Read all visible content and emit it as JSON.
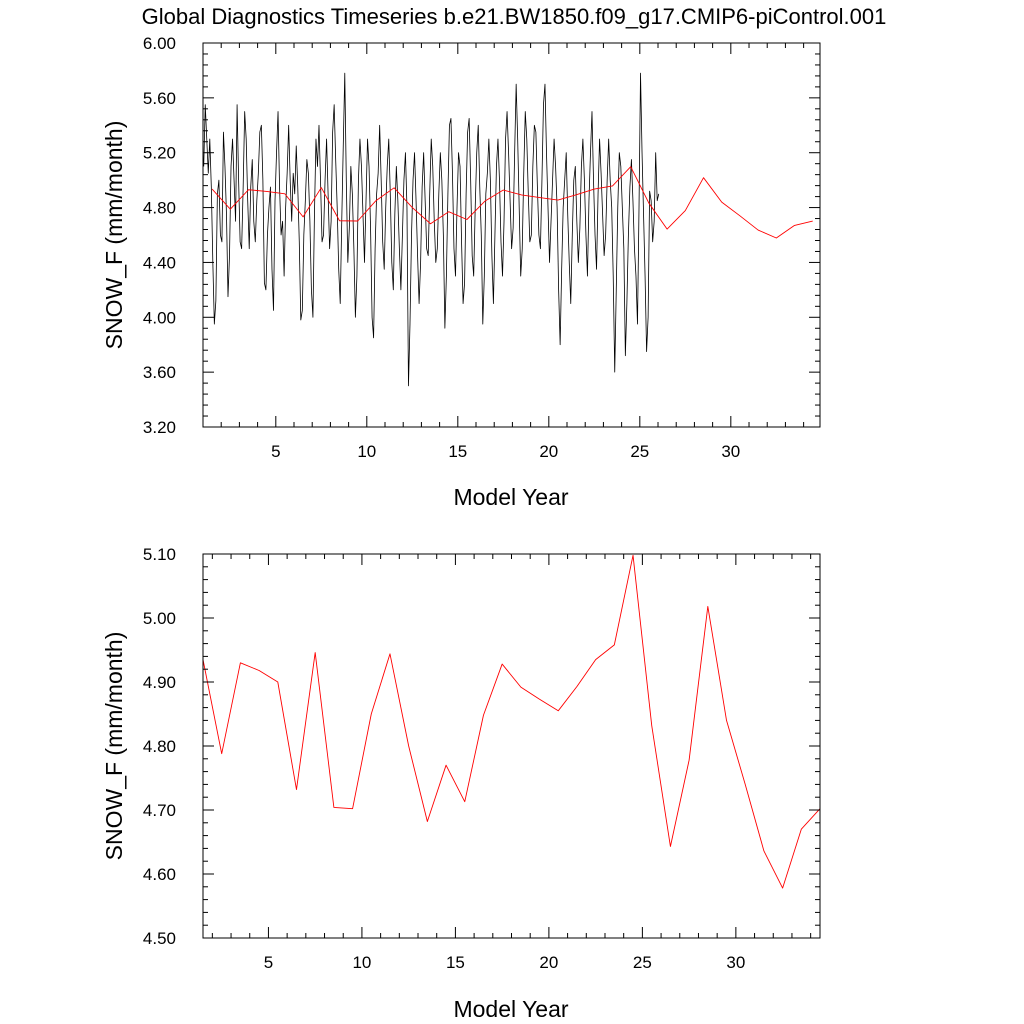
{
  "figure": {
    "title": "Global Diagnostics Timeseries b.e21.BW1850.f09_g17.CMIP6-piControl.001"
  },
  "colors": {
    "monthly_series": "#000000",
    "annual_series": "#ff0000",
    "axes": "#000000"
  },
  "chart_data": [
    {
      "type": "line",
      "xlabel": "Model Year",
      "ylabel": "SNOW_F (mm/month)",
      "xlim": [
        1.0,
        34.9
      ],
      "ylim": [
        3.2,
        6.0
      ],
      "x_ticks": [
        5,
        10,
        15,
        20,
        25,
        30
      ],
      "x_tick_labels": [
        "5",
        "10",
        "15",
        "20",
        "25",
        "30"
      ],
      "y_ticks": [
        3.2,
        3.6,
        4.0,
        4.4,
        4.8,
        5.2,
        5.6,
        6.0
      ],
      "y_tick_labels": [
        "3.20",
        "3.60",
        "4.00",
        "4.40",
        "4.80",
        "5.20",
        "5.60",
        "6.00"
      ],
      "series": [
        {
          "color": "#000000",
          "x_start": 1.04,
          "x_step": 0.08333,
          "values": [
            5.1,
            5.55,
            5.3,
            5.05,
            5.3,
            4.95,
            4.4,
            3.95,
            4.12,
            4.9,
            5.0,
            4.6,
            4.55,
            5.35,
            5.1,
            4.75,
            4.15,
            4.45,
            5.1,
            5.3,
            5.0,
            4.7,
            5.55,
            5.0,
            4.55,
            4.5,
            4.95,
            5.5,
            5.3,
            4.85,
            4.5,
            4.95,
            5.15,
            4.7,
            4.55,
            4.85,
            5.05,
            5.35,
            5.4,
            5.0,
            4.25,
            4.2,
            4.6,
            4.8,
            4.95,
            4.35,
            4.05,
            4.85,
            5.2,
            5.5,
            4.95,
            4.6,
            4.7,
            4.3,
            4.8,
            5.05,
            5.4,
            5.0,
            4.7,
            5.05,
            4.9,
            5.25,
            4.95,
            4.55,
            3.98,
            4.05,
            4.6,
            4.85,
            5.15,
            5.05,
            4.7,
            4.2,
            4.0,
            4.75,
            5.3,
            5.1,
            5.4,
            5.0,
            4.55,
            4.6,
            5.0,
            5.3,
            4.9,
            4.5,
            4.7,
            5.35,
            5.55,
            5.15,
            4.8,
            4.35,
            4.1,
            4.7,
            5.25,
            5.78,
            5.0,
            4.4,
            4.65,
            5.1,
            4.9,
            4.5,
            4.0,
            4.3,
            5.0,
            5.3,
            5.1,
            4.75,
            4.4,
            4.85,
            5.3,
            5.1,
            4.65,
            4.0,
            3.85,
            4.5,
            4.9,
            5.05,
            5.4,
            5.0,
            4.55,
            4.35,
            4.8,
            5.1,
            5.3,
            4.9,
            4.4,
            4.2,
            4.75,
            5.1,
            4.85,
            4.5,
            4.2,
            4.6,
            5.0,
            5.2,
            4.8,
            3.5,
            3.95,
            4.6,
            5.0,
            5.2,
            4.85,
            4.45,
            4.1,
            4.4,
            4.95,
            5.2,
            4.85,
            4.5,
            4.45,
            4.9,
            5.3,
            5.1,
            4.7,
            4.4,
            4.5,
            4.9,
            5.2,
            5.0,
            4.6,
            3.92,
            4.3,
            4.9,
            5.4,
            5.45,
            5.05,
            4.5,
            4.3,
            4.8,
            5.2,
            5.1,
            4.55,
            4.1,
            4.25,
            4.9,
            5.35,
            5.45,
            5.0,
            4.45,
            4.3,
            4.8,
            5.2,
            5.4,
            4.95,
            4.6,
            3.95,
            4.3,
            4.9,
            5.05,
            5.3,
            5.0,
            4.45,
            4.1,
            4.6,
            5.1,
            5.3,
            5.0,
            4.55,
            4.3,
            4.7,
            5.3,
            5.5,
            5.2,
            4.85,
            4.5,
            4.65,
            5.2,
            5.7,
            5.3,
            4.8,
            4.3,
            4.5,
            5.05,
            5.5,
            5.3,
            4.9,
            4.55,
            4.6,
            5.1,
            5.4,
            5.35,
            4.95,
            4.6,
            4.5,
            5.0,
            5.55,
            5.7,
            5.2,
            4.8,
            4.4,
            4.7,
            5.0,
            5.3,
            5.1,
            4.8,
            4.2,
            3.8,
            4.35,
            4.8,
            5.0,
            5.2,
            4.75,
            4.4,
            4.1,
            4.6,
            5.0,
            5.1,
            4.7,
            4.4,
            4.65,
            5.1,
            5.3,
            5.0,
            4.6,
            4.3,
            4.85,
            5.2,
            5.5,
            5.0,
            4.6,
            4.35,
            4.9,
            5.3,
            5.05,
            4.75,
            4.45,
            4.6,
            5.0,
            5.3,
            5.0,
            4.8,
            4.3,
            3.6,
            4.2,
            4.8,
            5.2,
            5.1,
            4.8,
            4.5,
            3.72,
            4.1,
            4.6,
            4.95,
            5.15,
            4.85,
            4.5,
            4.3,
            3.95,
            4.8,
            5.78,
            5.2,
            4.75,
            4.3,
            3.75,
            4.0,
            4.92,
            4.85,
            4.55,
            4.7,
            5.2,
            4.85,
            4.9
          ]
        },
        {
          "color": "#ff0000",
          "x": [
            1.5,
            2.5,
            3.5,
            4.5,
            5.5,
            6.5,
            7.5,
            8.5,
            9.5,
            10.5,
            11.5,
            12.5,
            13.5,
            14.5,
            15.5,
            16.5,
            17.5,
            18.5,
            19.5,
            20.5,
            21.5,
            22.5,
            23.5,
            24.5,
            25.5,
            26.5,
            27.5,
            28.5,
            29.5,
            30.5,
            31.5,
            32.5,
            33.5,
            34.5
          ],
          "values": [
            4.935,
            4.788,
            4.93,
            4.918,
            4.9,
            4.732,
            4.946,
            4.704,
            4.702,
            4.85,
            4.944,
            4.8,
            4.682,
            4.77,
            4.713,
            4.848,
            4.928,
            4.892,
            4.873,
            4.855,
            4.893,
            4.935,
            4.958,
            5.098,
            4.832,
            4.643,
            4.778,
            5.018,
            4.84,
            4.74,
            4.636,
            4.578,
            4.67,
            4.702
          ]
        }
      ]
    },
    {
      "type": "line",
      "xlabel": "Model Year",
      "ylabel": "SNOW_F (mm/month)",
      "xlim": [
        1.5,
        34.5
      ],
      "ylim": [
        4.5,
        5.1
      ],
      "x_ticks": [
        5,
        10,
        15,
        20,
        25,
        30
      ],
      "x_tick_labels": [
        "5",
        "10",
        "15",
        "20",
        "25",
        "30"
      ],
      "y_ticks": [
        4.5,
        4.6,
        4.7,
        4.8,
        4.9,
        5.0,
        5.1
      ],
      "y_tick_labels": [
        "4.50",
        "4.60",
        "4.70",
        "4.80",
        "4.90",
        "5.00",
        "5.10"
      ],
      "series": [
        {
          "color": "#ff0000",
          "x": [
            1.5,
            2.5,
            3.5,
            4.5,
            5.5,
            6.5,
            7.5,
            8.5,
            9.5,
            10.5,
            11.5,
            12.5,
            13.5,
            14.5,
            15.5,
            16.5,
            17.5,
            18.5,
            19.5,
            20.5,
            21.5,
            22.5,
            23.5,
            24.5,
            25.5,
            26.5,
            27.5,
            28.5,
            29.5,
            30.5,
            31.5,
            32.5,
            33.5,
            34.5
          ],
          "values": [
            4.935,
            4.788,
            4.93,
            4.918,
            4.9,
            4.732,
            4.946,
            4.704,
            4.702,
            4.85,
            4.944,
            4.8,
            4.682,
            4.77,
            4.713,
            4.848,
            4.928,
            4.892,
            4.873,
            4.855,
            4.893,
            4.935,
            4.958,
            5.098,
            4.832,
            4.643,
            4.778,
            5.018,
            4.84,
            4.74,
            4.636,
            4.578,
            4.67,
            4.702
          ]
        }
      ]
    }
  ]
}
